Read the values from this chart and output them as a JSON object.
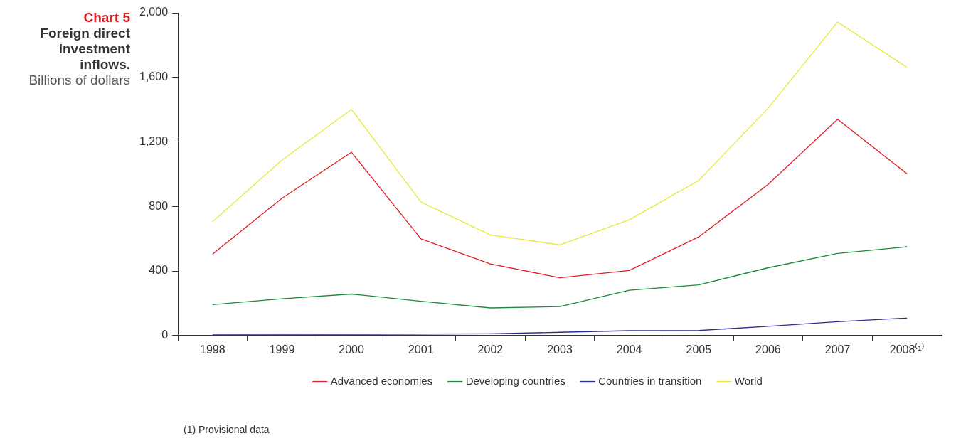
{
  "chart_data": {
    "type": "line",
    "title": "Chart 5",
    "subtitle": "Foreign direct investment inflows.",
    "ylabel": "Billions of dollars",
    "categories": [
      "1998",
      "1999",
      "2000",
      "2001",
      "2002",
      "2003",
      "2004",
      "2005",
      "2006",
      "2007",
      "2008⁽¹⁾"
    ],
    "series": [
      {
        "name": "Advanced economies",
        "color": "#e31e24",
        "values": [
          505,
          851,
          1136,
          599,
          444,
          358,
          403,
          611,
          937,
          1340,
          1002
        ]
      },
      {
        "name": "Developing countries",
        "color": "#1b8a3c",
        "values": [
          191,
          228,
          257,
          212,
          171,
          179,
          281,
          314,
          420,
          509,
          550
        ]
      },
      {
        "name": "Countries in transition",
        "color": "#2b2f8f",
        "values": [
          7,
          8,
          7,
          9,
          11,
          20,
          30,
          31,
          57,
          86,
          108
        ]
      },
      {
        "name": "World",
        "color": "#e8e83a",
        "values": [
          705,
          1088,
          1401,
          827,
          623,
          562,
          717,
          961,
          1409,
          1943,
          1662
        ]
      }
    ],
    "ylim": [
      0,
      2000
    ],
    "yticks": [
      0,
      {
        "value": 400,
        "label": "400"
      },
      {
        "value": 800,
        "label": "800"
      },
      {
        "value": 1200,
        "label": "1,200"
      },
      {
        "value": 1600,
        "label": "1,600"
      },
      {
        "value": 2000,
        "label": "2,000"
      }
    ],
    "legend": "bottom",
    "marker": "none",
    "line_style": "solid",
    "annotations": [
      "(1) Provisional data"
    ]
  }
}
